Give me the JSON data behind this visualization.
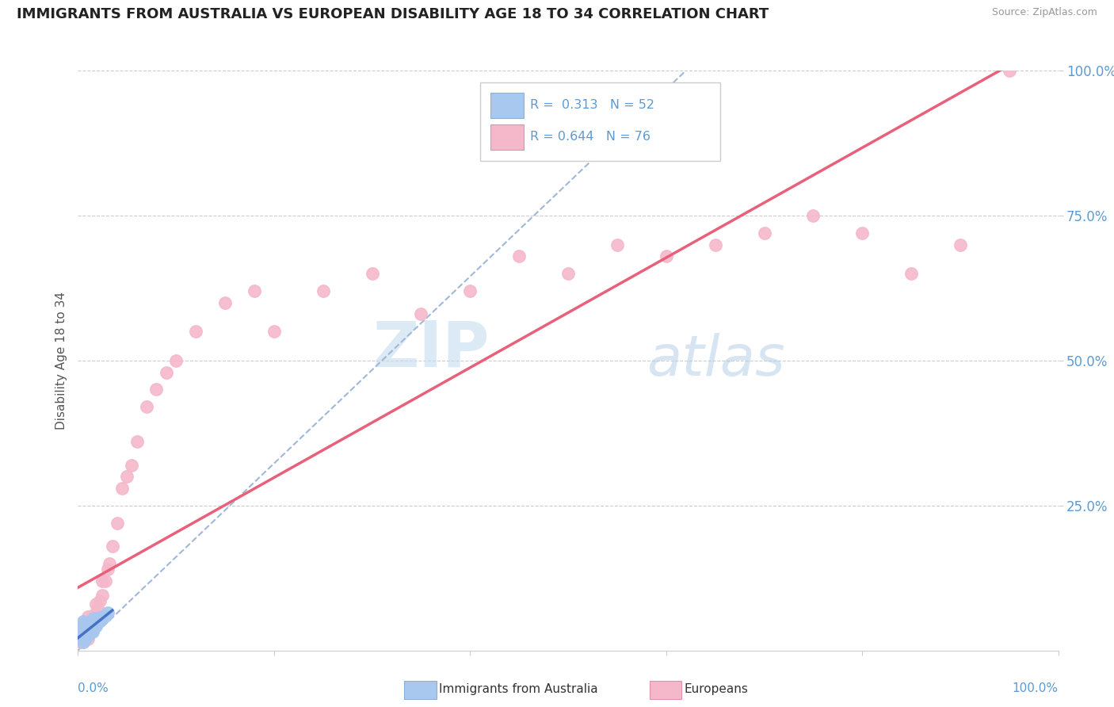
{
  "title": "IMMIGRANTS FROM AUSTRALIA VS EUROPEAN DISABILITY AGE 18 TO 34 CORRELATION CHART",
  "source": "Source: ZipAtlas.com",
  "ylabel": "Disability Age 18 to 34",
  "xlim": [
    0,
    1.0
  ],
  "ylim": [
    0,
    1.0
  ],
  "ytick_positions": [
    0.25,
    0.5,
    0.75,
    1.0
  ],
  "background_color": "#ffffff",
  "color_australia": "#a8c8f0",
  "color_europe": "#f5b8cb",
  "line_color_australia": "#4472c4",
  "line_color_europe": "#e8607a",
  "ref_line_color": "#a0b8d8",
  "grid_color": "#cccccc",
  "tick_color": "#5b9bd5",
  "australia_x": [
    0.002,
    0.003,
    0.003,
    0.004,
    0.004,
    0.004,
    0.005,
    0.005,
    0.005,
    0.005,
    0.005,
    0.005,
    0.005,
    0.006,
    0.006,
    0.006,
    0.006,
    0.006,
    0.007,
    0.007,
    0.007,
    0.007,
    0.008,
    0.008,
    0.008,
    0.008,
    0.009,
    0.009,
    0.009,
    0.01,
    0.01,
    0.01,
    0.01,
    0.011,
    0.011,
    0.012,
    0.012,
    0.013,
    0.014,
    0.015,
    0.015,
    0.016,
    0.016,
    0.017,
    0.018,
    0.019,
    0.02,
    0.021,
    0.022,
    0.025,
    0.028,
    0.03
  ],
  "australia_y": [
    0.02,
    0.025,
    0.03,
    0.022,
    0.028,
    0.035,
    0.015,
    0.02,
    0.025,
    0.03,
    0.035,
    0.04,
    0.05,
    0.018,
    0.025,
    0.03,
    0.035,
    0.045,
    0.02,
    0.028,
    0.032,
    0.04,
    0.022,
    0.028,
    0.035,
    0.042,
    0.025,
    0.03,
    0.04,
    0.025,
    0.032,
    0.038,
    0.048,
    0.028,
    0.038,
    0.03,
    0.045,
    0.038,
    0.035,
    0.032,
    0.045,
    0.04,
    0.055,
    0.042,
    0.042,
    0.048,
    0.048,
    0.055,
    0.052,
    0.058,
    0.06,
    0.065
  ],
  "europe_x": [
    0.002,
    0.002,
    0.003,
    0.003,
    0.003,
    0.004,
    0.004,
    0.004,
    0.004,
    0.005,
    0.005,
    0.005,
    0.005,
    0.005,
    0.006,
    0.006,
    0.006,
    0.006,
    0.007,
    0.007,
    0.007,
    0.008,
    0.008,
    0.008,
    0.009,
    0.009,
    0.01,
    0.01,
    0.01,
    0.01,
    0.011,
    0.012,
    0.012,
    0.013,
    0.014,
    0.015,
    0.016,
    0.017,
    0.018,
    0.019,
    0.02,
    0.022,
    0.025,
    0.025,
    0.028,
    0.03,
    0.032,
    0.035,
    0.04,
    0.045,
    0.05,
    0.055,
    0.06,
    0.07,
    0.08,
    0.09,
    0.1,
    0.12,
    0.15,
    0.18,
    0.2,
    0.25,
    0.3,
    0.35,
    0.4,
    0.45,
    0.5,
    0.55,
    0.6,
    0.65,
    0.7,
    0.75,
    0.8,
    0.85,
    0.9,
    0.95
  ],
  "europe_y": [
    0.015,
    0.025,
    0.018,
    0.028,
    0.038,
    0.02,
    0.028,
    0.035,
    0.045,
    0.015,
    0.022,
    0.03,
    0.038,
    0.048,
    0.018,
    0.028,
    0.035,
    0.045,
    0.02,
    0.032,
    0.042,
    0.025,
    0.035,
    0.048,
    0.025,
    0.038,
    0.02,
    0.03,
    0.04,
    0.058,
    0.038,
    0.03,
    0.045,
    0.04,
    0.055,
    0.038,
    0.055,
    0.062,
    0.08,
    0.058,
    0.072,
    0.085,
    0.095,
    0.12,
    0.12,
    0.14,
    0.15,
    0.18,
    0.22,
    0.28,
    0.3,
    0.32,
    0.36,
    0.42,
    0.45,
    0.48,
    0.5,
    0.55,
    0.6,
    0.62,
    0.55,
    0.62,
    0.65,
    0.58,
    0.62,
    0.68,
    0.65,
    0.7,
    0.68,
    0.7,
    0.72,
    0.75,
    0.72,
    0.65,
    0.7,
    1.0
  ]
}
